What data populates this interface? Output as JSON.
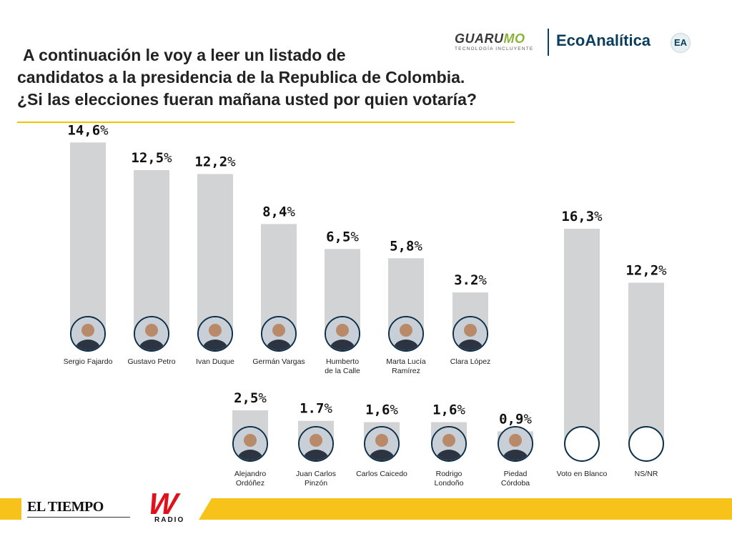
{
  "header": {
    "title_lines": [
      "A continuación le voy a leer un listado de",
      "candidatos a la presidencia de la Republica de Colombia.",
      "¿Si las elecciones fueran mañana usted por quien votaría?"
    ]
  },
  "logos": {
    "guarumo_word_a": "GUARU",
    "guarumo_word_b": "MO",
    "guarumo_tagline": "TECNOLOGÍA INCLUYENTE",
    "ecoanalitica": "EcoAnalítica",
    "ea_mark": "EA",
    "eltiempo": "EL TIEMPO",
    "w_mark": "W",
    "w_radio": "RADIO"
  },
  "colors": {
    "bar": "#d1d3d4",
    "accent_yellow": "#f7c21a",
    "title_rule": "#f2c200",
    "brand_blue": "#0b3e5e",
    "w_red": "#e0111b"
  },
  "chart_data": {
    "type": "bar",
    "title": "¿Si las elecciones fueran mañana usted por quien votaría?",
    "unit": "%",
    "ylim": [
      0,
      16.3
    ],
    "grid": false,
    "rows": [
      {
        "row": 1,
        "items": [
          {
            "name": [
              "Sergio Fajardo"
            ],
            "value": 14.6,
            "label_num": "14,6",
            "label_pct": "%",
            "photo": true
          },
          {
            "name": [
              "Gustavo Petro"
            ],
            "value": 12.5,
            "label_num": "12,5",
            "label_pct": "%",
            "photo": true
          },
          {
            "name": [
              "Ivan Duque"
            ],
            "value": 12.2,
            "label_num": "12,2",
            "label_pct": "%",
            "photo": true
          },
          {
            "name": [
              "Germán Vargas"
            ],
            "value": 8.4,
            "label_num": "8,4",
            "label_pct": "%",
            "photo": true
          },
          {
            "name": [
              "Humberto",
              "de la Calle"
            ],
            "value": 6.5,
            "label_num": "6,5",
            "label_pct": "%",
            "photo": true
          },
          {
            "name": [
              "Marta Lucía",
              "Ramírez"
            ],
            "value": 5.8,
            "label_num": "5,8",
            "label_pct": "%",
            "photo": true
          },
          {
            "name": [
              "Clara López"
            ],
            "value": 3.2,
            "label_num": "3.2",
            "label_pct": "%",
            "photo": true
          }
        ]
      },
      {
        "row": 2,
        "items": [
          {
            "name": [
              "Alejandro",
              "Ordóñez"
            ],
            "value": 2.5,
            "label_num": "2,5",
            "label_pct": "%",
            "photo": true
          },
          {
            "name": [
              "Juan Carlos",
              "Pinzón"
            ],
            "value": 1.7,
            "label_num": "1.7",
            "label_pct": "%",
            "photo": true
          },
          {
            "name": [
              "Carlos Caicedo"
            ],
            "value": 1.6,
            "label_num": "1,6",
            "label_pct": "%",
            "photo": true
          },
          {
            "name": [
              "Rodrigo",
              "Londoño"
            ],
            "value": 1.6,
            "label_num": "1,6",
            "label_pct": "%",
            "photo": true
          },
          {
            "name": [
              "Piedad",
              "Córdoba"
            ],
            "value": 0.9,
            "label_num": "0,9",
            "label_pct": "%",
            "photo": true
          },
          {
            "name": [
              "Voto en Blanco"
            ],
            "value": 16.3,
            "label_num": "16,3",
            "label_pct": "%",
            "photo": false
          },
          {
            "name": [
              "NS/NR"
            ],
            "value": 12.2,
            "label_num": "12,2",
            "label_pct": "%",
            "photo": false
          }
        ]
      }
    ]
  }
}
